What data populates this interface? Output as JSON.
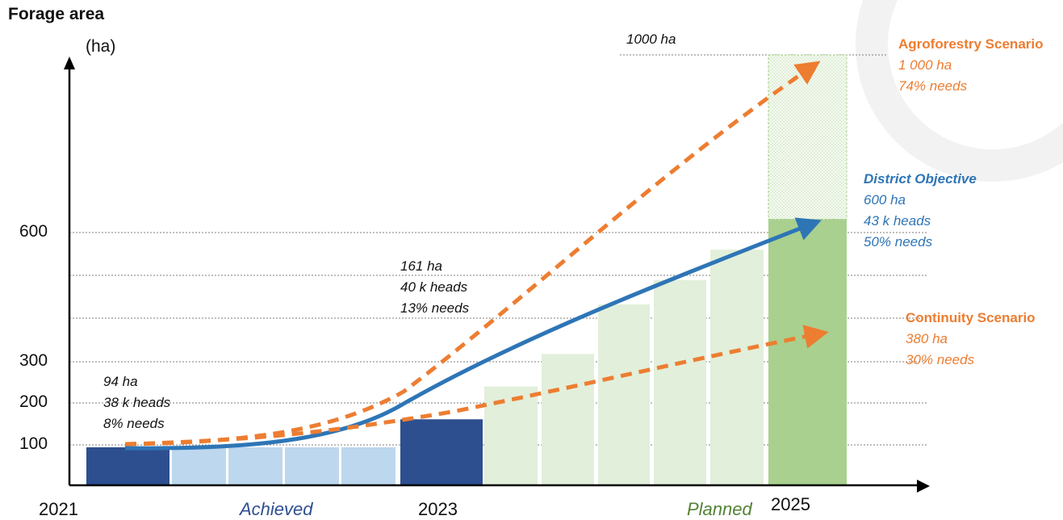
{
  "colors": {
    "achieved_dark": "#2e4f8f",
    "achieved_light": "#bdd7ee",
    "planned_light": "#e2efda",
    "planned_dark": "#a9d08e",
    "agroforestry": "#ed7d31",
    "district": "#2e75b6",
    "text": "#111111"
  },
  "chart_data": {
    "type": "bar",
    "title": "Forage area",
    "ylabel": "(ha)",
    "yticks": [
      "100",
      "200",
      "300",
      "600"
    ],
    "xticks": [
      {
        "label": "2021",
        "italic": false,
        "color": "#111111"
      },
      {
        "label": "Achieved",
        "italic": true,
        "color": "#2e4f8f"
      },
      {
        "label": "2023",
        "italic": false,
        "color": "#111111"
      },
      {
        "label": "Planned",
        "italic": true,
        "color": "#548235"
      },
      {
        "label": "2025",
        "italic": false,
        "color": "#111111"
      }
    ],
    "bars": [
      {
        "value": 94,
        "kind": "achieved_dark"
      },
      {
        "value": 94,
        "kind": "achieved_light"
      },
      {
        "value": 94,
        "kind": "achieved_light"
      },
      {
        "value": 94,
        "kind": "achieved_light"
      },
      {
        "value": 94,
        "kind": "achieved_light"
      },
      {
        "value": 161,
        "kind": "achieved_dark"
      },
      {
        "value": 240,
        "kind": "planned_light"
      },
      {
        "value": 318,
        "kind": "planned_light"
      },
      {
        "value": 432,
        "kind": "planned_light"
      },
      {
        "value": 489,
        "kind": "planned_light"
      },
      {
        "value": 560,
        "kind": "planned_light"
      },
      {
        "value": 630,
        "kind": "planned_dark",
        "stacked_top": 1000
      }
    ],
    "ref_lines": [
      100,
      200,
      300,
      400,
      500,
      600,
      1000
    ],
    "series": [
      {
        "name": "Agroforestry Scenario",
        "style": "dashed",
        "color": "agroforestry",
        "end_value": 1000
      },
      {
        "name": "District Objective",
        "style": "solid",
        "color": "district",
        "end_value": 600
      },
      {
        "name": "Continuity Scenario",
        "style": "dashed",
        "color": "agroforestry",
        "end_value": 380
      }
    ]
  },
  "annotations": {
    "top_label": "1000 ha",
    "y2021": [
      "94 ha",
      "38 k heads",
      "8% needs"
    ],
    "y2023": [
      "161 ha",
      "40 k heads",
      "13% needs"
    ],
    "agro": {
      "heading": "Agroforestry Scenario",
      "lines": [
        "1 000 ha",
        "74% needs"
      ]
    },
    "district": {
      "heading": "District Objective",
      "lines": [
        "600 ha",
        "43 k heads",
        "50% needs"
      ]
    },
    "continuity": {
      "heading": "Continuity Scenario",
      "lines": [
        "380 ha",
        "30% needs"
      ]
    }
  }
}
